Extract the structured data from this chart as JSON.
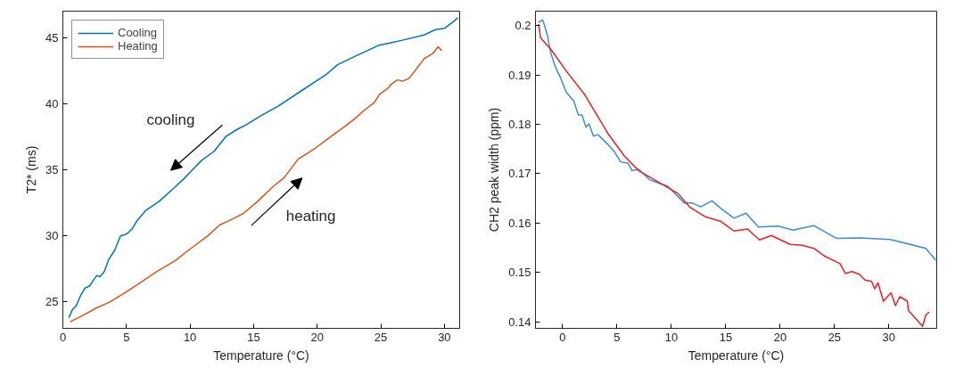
{
  "chart_data": [
    {
      "type": "line",
      "xlabel": "Temperature (°C)",
      "ylabel": "T2* (ms)",
      "xlim": [
        0,
        31.2
      ],
      "ylim": [
        23,
        47
      ],
      "xticks": [
        0,
        5,
        10,
        15,
        20,
        25,
        30
      ],
      "yticks": [
        25,
        30,
        35,
        40,
        45
      ],
      "grid": false,
      "legend": "top left",
      "series": [
        {
          "name": "Cooling",
          "color": "#0072bd",
          "x": [
            0.47,
            0.74,
            1.05,
            1.4,
            1.74,
            2.1,
            2.44,
            2.67,
            2.9,
            3.26,
            3.6,
            4.07,
            4.53,
            4.9,
            5.1,
            5.47,
            5.8,
            6.5,
            7.56,
            8.6,
            9.5,
            10.1,
            10.9,
            11.9,
            12.8,
            13.6,
            14.4,
            15.6,
            16.9,
            18.8,
            20.7,
            21.6,
            22.8,
            24.8,
            25.8,
            26.7,
            28.4,
            29.3,
            30.0,
            30.7,
            31.05
          ],
          "values": [
            23.8,
            24.4,
            24.7,
            25.5,
            26.05,
            26.2,
            26.7,
            27.0,
            26.9,
            27.3,
            28.2,
            28.9,
            30.0,
            30.1,
            30.2,
            30.55,
            31.1,
            31.9,
            32.6,
            33.5,
            34.3,
            34.9,
            35.7,
            36.4,
            37.5,
            38.0,
            38.4,
            39.1,
            39.8,
            41.0,
            42.2,
            42.95,
            43.5,
            44.4,
            44.6,
            44.8,
            45.2,
            45.6,
            45.7,
            46.2,
            46.5
          ]
        },
        {
          "name": "Heating",
          "color": "#d95319",
          "x": [
            0.58,
            1.63,
            2.56,
            3.7,
            4.9,
            6.0,
            7.4,
            8.8,
            10.0,
            11.4,
            12.3,
            13.4,
            14.2,
            15.3,
            16.5,
            17.4,
            18.5,
            19.8,
            21.2,
            22.2,
            23.0,
            23.7,
            24.5,
            24.9,
            25.6,
            25.8,
            26.3,
            26.7,
            27.2,
            27.7,
            28.4,
            29.1,
            29.5,
            29.8
          ],
          "values": [
            23.5,
            24.0,
            24.5,
            25.0,
            25.7,
            26.4,
            27.3,
            28.1,
            29.0,
            30.0,
            30.8,
            31.3,
            31.7,
            32.6,
            33.7,
            34.4,
            35.8,
            36.6,
            37.6,
            38.3,
            38.9,
            39.5,
            40.1,
            40.7,
            41.2,
            41.45,
            41.8,
            41.7,
            41.9,
            42.5,
            43.4,
            43.8,
            44.3,
            44.0
          ]
        }
      ],
      "annotations": [
        "cooling",
        "heating"
      ]
    },
    {
      "type": "line",
      "xlabel": "Temperature (°C)",
      "ylabel": "CH2 peak width (ppm)",
      "xlim": [
        -2.5,
        34.4
      ],
      "ylim": [
        0.1387,
        0.2029
      ],
      "xticks": [
        0,
        5,
        10,
        15,
        20,
        25,
        30
      ],
      "yticks": [
        0.14,
        0.15,
        0.16,
        0.17,
        0.18,
        0.19,
        0.2
      ],
      "grid": false,
      "series": [
        {
          "color": "#3b8ed0",
          "x": [
            -2.22,
            -2.03,
            -1.83,
            -1.67,
            -1.39,
            -1.1,
            -0.78,
            -0.5,
            -0.17,
            0.33,
            1.03,
            1.44,
            1.78,
            2.14,
            2.42,
            2.83,
            3.25,
            4.08,
            4.78,
            5.33,
            6.03,
            6.39,
            7.0,
            7.97,
            8.94,
            9.64,
            10.33,
            11.17,
            11.86,
            12.7,
            13.72,
            14.6,
            15.75,
            16.86,
            18.0,
            19.8,
            21.2,
            23.1,
            25.2,
            27.3,
            30.1,
            33.4,
            34.3
          ],
          "values": [
            0.2006,
            0.2009,
            0.2011,
            0.2,
            0.1979,
            0.1945,
            0.1923,
            0.1908,
            0.1893,
            0.1865,
            0.1847,
            0.1819,
            0.1819,
            0.1794,
            0.1801,
            0.1776,
            0.1779,
            0.1761,
            0.1744,
            0.1724,
            0.1721,
            0.1706,
            0.1709,
            0.1688,
            0.168,
            0.1675,
            0.166,
            0.1641,
            0.1641,
            0.1633,
            0.1645,
            0.1629,
            0.161,
            0.162,
            0.1592,
            0.1594,
            0.1586,
            0.1595,
            0.1569,
            0.157,
            0.1567,
            0.1549,
            0.1525
          ]
        },
        {
          "color": "#e8202a",
          "x": [
            -2.22,
            -2.03,
            -1.06,
            0.33,
            2.06,
            4.14,
            5.67,
            7.0,
            8.94,
            10.6,
            11.7,
            13.1,
            14.5,
            15.75,
            17.0,
            18.1,
            19.2,
            20.9,
            22.0,
            23.1,
            24.1,
            25.5,
            26.0,
            26.6,
            27.3,
            27.8,
            28.4,
            28.7,
            29.0,
            29.5,
            30.2,
            30.6,
            31.0,
            31.7,
            31.8,
            33.1,
            33.4,
            33.7
          ],
          "values": [
            0.2003,
            0.1975,
            0.1951,
            0.1908,
            0.1859,
            0.1782,
            0.1736,
            0.1706,
            0.1681,
            0.166,
            0.1632,
            0.1613,
            0.1604,
            0.1584,
            0.1588,
            0.1566,
            0.1575,
            0.1557,
            0.1555,
            0.1549,
            0.1533,
            0.1518,
            0.1498,
            0.1502,
            0.1496,
            0.1485,
            0.1482,
            0.1467,
            0.1479,
            0.1442,
            0.1459,
            0.1433,
            0.1451,
            0.1442,
            0.1423,
            0.1391,
            0.1414,
            0.142
          ]
        }
      ]
    }
  ]
}
